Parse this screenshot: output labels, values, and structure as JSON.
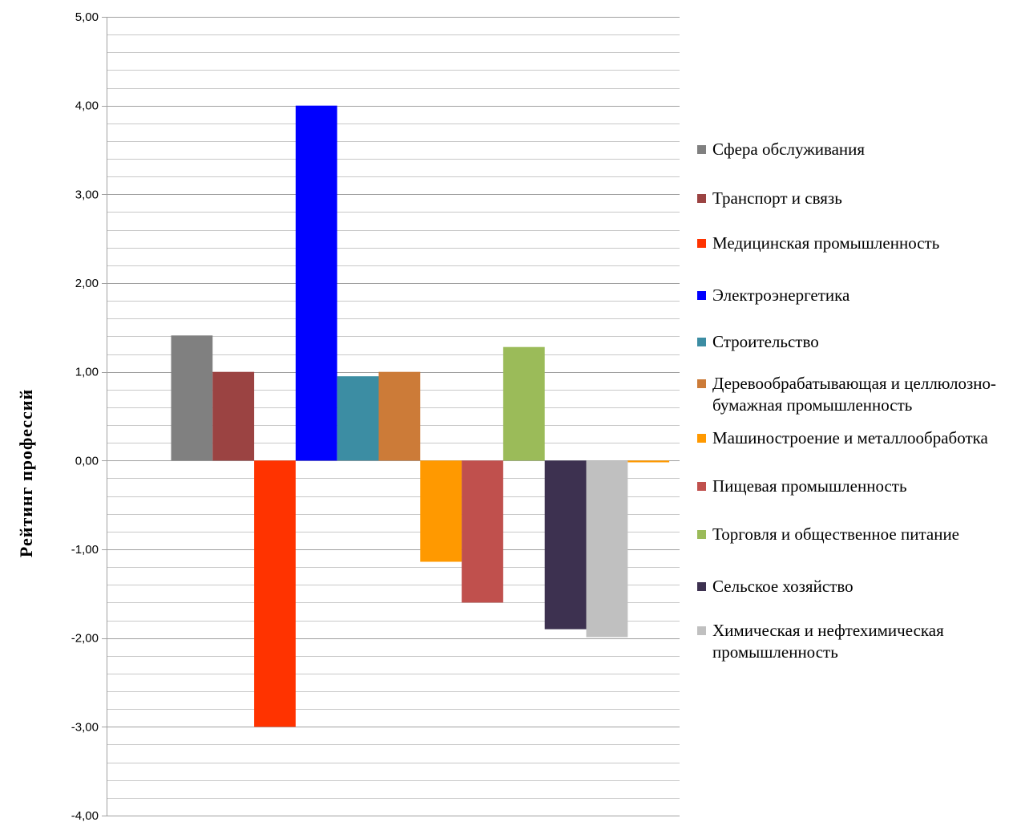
{
  "chart_data": {
    "type": "bar",
    "ylabel": "Рейтинг профессий",
    "xlabel": "",
    "ylim": [
      -4,
      5
    ],
    "y_ticks": [
      "5,00",
      "4,00",
      "3,00",
      "2,00",
      "1,00",
      "0,00",
      "-1,00",
      "-2,00",
      "-3,00",
      "-4,00"
    ],
    "grid": true,
    "legend_position": "right",
    "series": [
      {
        "name": "Сфера обслуживания",
        "lines": [
          "Сфера обслуживания"
        ],
        "value": 1.41,
        "color": "#808080"
      },
      {
        "name": "Транспорт и связь",
        "lines": [
          "Транспорт и связь"
        ],
        "value": 1.0,
        "color": "#9B4342"
      },
      {
        "name": "Медицинская промышленность",
        "lines": [
          "Медицинская промышленность"
        ],
        "value": -3.0,
        "color": "#FF3300"
      },
      {
        "name": "Электроэнергетика",
        "lines": [
          "Электроэнергетика"
        ],
        "value": 4.0,
        "color": "#0000FF"
      },
      {
        "name": "Строительство",
        "lines": [
          "Строительство"
        ],
        "value": 0.95,
        "color": "#3C8DA3"
      },
      {
        "name": "Деревообрабатывающая и целлюлозно-бумажная промышленность",
        "lines": [
          "Деревообрабатывающая и целлюлозно-",
          "бумажная промышленность"
        ],
        "value": 1.0,
        "color": "#CC7B38"
      },
      {
        "name": "Машиностроение и металлообработка",
        "lines": [
          "Машиностроение и металлообработка"
        ],
        "value": -1.14,
        "color": "#FF9900"
      },
      {
        "name": "Пищевая промышленность",
        "lines": [
          "Пищевая промышленность"
        ],
        "value": -1.6,
        "color": "#C0504D"
      },
      {
        "name": "Торговля и общественное питание",
        "lines": [
          "Торговля и общественное питание"
        ],
        "value": 1.28,
        "color": "#9BBB59"
      },
      {
        "name": "Сельское хозяйство",
        "lines": [
          "Сельское хозяйство"
        ],
        "value": -1.9,
        "color": "#3D3150"
      },
      {
        "name": "Химическая и нефтехимическая промышленность",
        "lines": [
          "Химическая и нефтехимическая",
          "промышленность"
        ],
        "value": -1.99,
        "color": "#C0C0C0"
      },
      {
        "name": "",
        "lines": [],
        "value": -0.02,
        "color": "#FF9900"
      }
    ]
  }
}
